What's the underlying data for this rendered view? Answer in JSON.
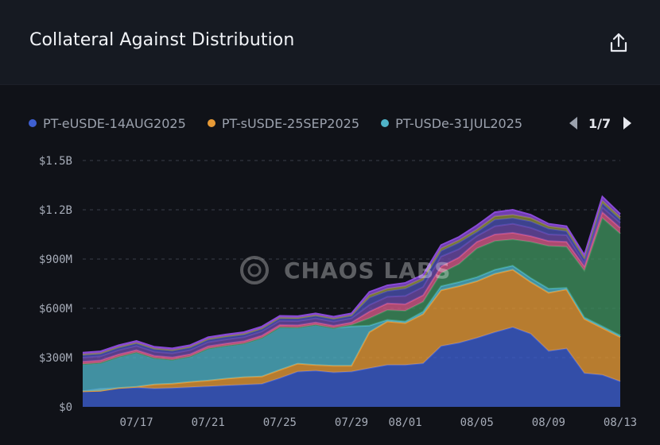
{
  "header": {
    "title": "Collateral Against Distribution",
    "share_icon": "share-icon"
  },
  "legend": {
    "items": [
      {
        "label": "PT-eUSDE-14AUG2025",
        "color": "#3e5fd1"
      },
      {
        "label": "PT-sUSDE-25SEP2025",
        "color": "#e79a36"
      },
      {
        "label": "PT-USDe-31JUL2025",
        "color": "#4fb3c8"
      }
    ],
    "page": "1/7"
  },
  "watermark": "CHAOS LABS",
  "chart_data": {
    "type": "area",
    "stacked": true,
    "x": [
      "07/14",
      "07/15",
      "07/16",
      "07/17",
      "07/18",
      "07/19",
      "07/20",
      "07/21",
      "07/22",
      "07/23",
      "07/24",
      "07/25",
      "07/26",
      "07/27",
      "07/28",
      "07/29",
      "07/30",
      "07/31",
      "08/01",
      "08/02",
      "08/03",
      "08/04",
      "08/05",
      "08/06",
      "08/07",
      "08/08",
      "08/09",
      "08/10",
      "08/11",
      "08/12",
      "08/13"
    ],
    "x_tick_labels": [
      "07/17",
      "07/21",
      "07/25",
      "07/29",
      "08/01",
      "08/05",
      "08/09",
      "08/13"
    ],
    "y_tick_labels": [
      "$0",
      "$300M",
      "$600M",
      "$900M",
      "$1.2B",
      "$1.5B"
    ],
    "ylim": [
      0,
      1500
    ],
    "y_unit": "$M",
    "grid": true,
    "legend_position": "top",
    "series": [
      {
        "name": "PT-eUSDE-14AUG2025",
        "color": "#3e5fd1",
        "values": [
          95,
          110,
          115,
          118,
          112,
          115,
          120,
          125,
          130,
          135,
          140,
          175,
          215,
          220,
          210,
          215,
          235,
          255,
          255,
          265,
          370,
          390,
          420,
          455,
          485,
          445,
          340,
          355,
          205,
          195,
          155
        ]
      },
      {
        "name": "PT-sUSDE-25SEP2025",
        "color": "#e79a36",
        "values": [
          0,
          -12,
          0,
          4,
          25,
          27,
          32,
          35,
          42,
          46,
          45,
          50,
          48,
          35,
          40,
          35,
          220,
          265,
          255,
          300,
          340,
          345,
          345,
          355,
          350,
          315,
          355,
          360,
          330,
          285,
          270
        ]
      },
      {
        "name": "PT-USDe-31JUL2025",
        "color": "#4fb3c8",
        "values": [
          165,
          170,
          190,
          210,
          160,
          145,
          155,
          195,
          200,
          205,
          235,
          260,
          220,
          245,
          230,
          240,
          40,
          10,
          10,
          15,
          25,
          25,
          25,
          25,
          25,
          25,
          25,
          10,
          10,
          10,
          10
        ]
      },
      {
        "color": "#3f8f5e",
        "values": [
          0,
          0,
          0,
          0,
          0,
          0,
          0,
          0,
          0,
          0,
          0,
          0,
          0,
          0,
          0,
          10,
          45,
          60,
          65,
          60,
          80,
          110,
          175,
          175,
          160,
          220,
          260,
          250,
          285,
          660,
          620
        ]
      },
      {
        "color": "#d85a8a",
        "values": [
          15,
          15,
          15,
          14,
          14,
          14,
          14,
          14,
          14,
          14,
          14,
          14,
          14,
          14,
          14,
          14,
          40,
          40,
          40,
          40,
          40,
          40,
          40,
          40,
          40,
          35,
          30,
          30,
          25,
          35,
          35
        ]
      },
      {
        "color": "#6b4aa8",
        "values": [
          25,
          25,
          25,
          25,
          25,
          25,
          25,
          25,
          25,
          25,
          25,
          25,
          25,
          25,
          25,
          25,
          40,
          40,
          50,
          50,
          60,
          50,
          35,
          50,
          55,
          50,
          40,
          40,
          20,
          30,
          30
        ]
      },
      {
        "color": "#4a4fb0",
        "values": [
          15,
          15,
          15,
          15,
          15,
          15,
          15,
          15,
          15,
          15,
          15,
          15,
          15,
          15,
          15,
          15,
          45,
          35,
          45,
          40,
          35,
          40,
          25,
          40,
          35,
          40,
          35,
          25,
          25,
          25,
          20
        ]
      },
      {
        "color": "#8a8a3a",
        "values": [
          5,
          5,
          5,
          5,
          5,
          5,
          5,
          5,
          5,
          5,
          5,
          5,
          5,
          5,
          5,
          5,
          15,
          15,
          15,
          15,
          15,
          15,
          15,
          20,
          20,
          20,
          15,
          15,
          10,
          15,
          15
        ]
      },
      {
        "color": "#8a4ad8",
        "values": [
          10,
          10,
          10,
          10,
          10,
          10,
          10,
          10,
          10,
          10,
          10,
          10,
          10,
          10,
          10,
          10,
          20,
          20,
          20,
          20,
          20,
          20,
          25,
          25,
          30,
          20,
          15,
          15,
          15,
          25,
          20
        ]
      }
    ]
  }
}
